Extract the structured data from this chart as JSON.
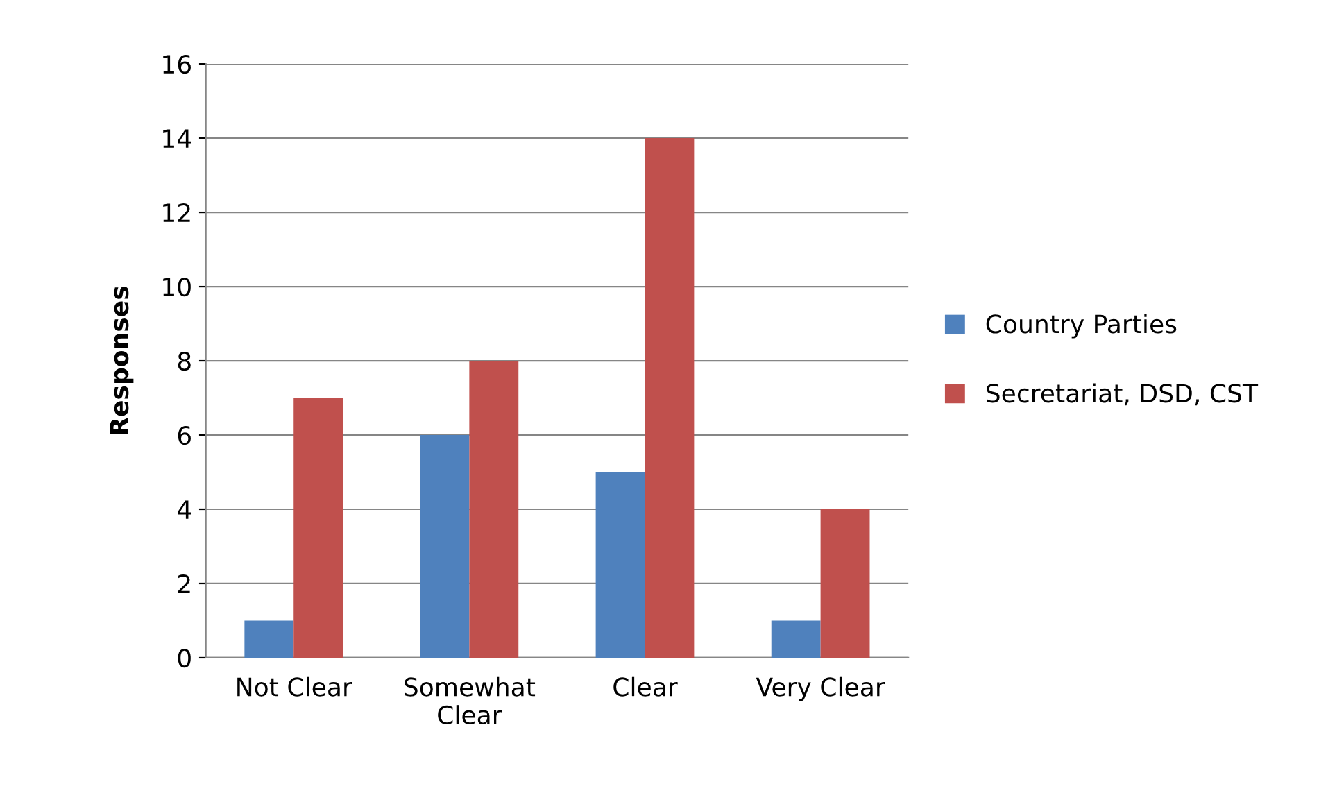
{
  "chart_data": {
    "type": "bar",
    "ylabel": "Responses",
    "categories": [
      "Not Clear",
      "Somewhat\nClear",
      "Clear",
      "Very Clear"
    ],
    "series": [
      {
        "name": "Country Parties",
        "color": "#4f81bd",
        "values": [
          1,
          6,
          5,
          1
        ]
      },
      {
        "name": "Secretariat, DSD, CST",
        "color": "#c0504d",
        "values": [
          7,
          8,
          14,
          4
        ]
      }
    ],
    "ylim": [
      0,
      16
    ],
    "yticks": [
      0,
      2,
      4,
      6,
      8,
      10,
      12,
      14,
      16
    ],
    "grid": "y",
    "legend": "right"
  }
}
